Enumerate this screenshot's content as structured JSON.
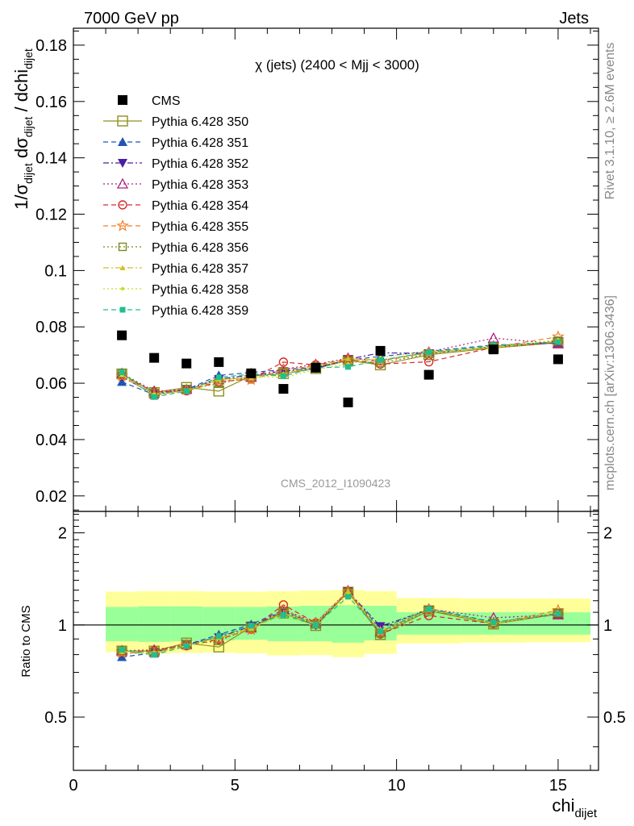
{
  "header": {
    "energy_label": "7000 GeV pp",
    "process_label": "Jets"
  },
  "side_labels": {
    "rivet": "Rivet 3.1.10, ≥ 2.6M events",
    "mcplots": "mcplots.cern.ch [arXiv:1306.3436]"
  },
  "chart_data": [
    {
      "type": "scatter",
      "panel": "main",
      "title": "χ (jets) (2400 < Mjj < 3000)",
      "watermark": "CMS_2012_I1090423",
      "ylabel": {
        "base": "1/σ",
        "sub1": "dijet",
        "mid": " dσ",
        "sub2": "dijet",
        "tail": " / dchi",
        "sub3": "dijet"
      },
      "xlim": [
        0,
        16.25
      ],
      "ylim": [
        0.0145,
        0.186
      ],
      "yticks": [
        0.02,
        0.04,
        0.06,
        0.08,
        0.1,
        0.12,
        0.14,
        0.16,
        0.18
      ],
      "ytick_labels": [
        "0.02",
        "0.04",
        "0.06",
        "0.08",
        "0.1",
        "0.12",
        "0.14",
        "0.16",
        "0.18"
      ],
      "legend_position": "top-left",
      "x": [
        1.5,
        2.5,
        3.5,
        4.5,
        5.5,
        6.5,
        7.5,
        8.5,
        9.5,
        11,
        13,
        15
      ],
      "series": [
        {
          "name": "CMS",
          "color": "#000000",
          "marker": "filled-square",
          "dash": "none",
          "values": [
            0.077,
            0.069,
            0.067,
            0.0675,
            0.0635,
            0.058,
            0.0655,
            0.0532,
            0.0715,
            0.063,
            0.072,
            0.0685
          ]
        },
        {
          "name": "Pythia 6.428 350",
          "color": "#8f8f1f",
          "marker": "open-square",
          "dash": "solid",
          "values": [
            0.0633,
            0.0567,
            0.0585,
            0.0572,
            0.0626,
            0.0634,
            0.0652,
            0.0681,
            0.0665,
            0.0701,
            0.0725,
            0.0744
          ]
        },
        {
          "name": "Pythia 6.428 351",
          "color": "#1f56b4",
          "marker": "filled-triangle-up",
          "dash": "dashed",
          "values": [
            0.0605,
            0.0559,
            0.0577,
            0.0628,
            0.0638,
            0.0648,
            0.0657,
            0.0682,
            0.0695,
            0.0713,
            0.0736,
            0.0742
          ]
        },
        {
          "name": "Pythia 6.428 352",
          "color": "#4b1fa0",
          "marker": "filled-triangle-down",
          "dash": "dashdot",
          "values": [
            0.0622,
            0.0562,
            0.058,
            0.0615,
            0.0629,
            0.0643,
            0.0653,
            0.0685,
            0.0708,
            0.0706,
            0.073,
            0.0748
          ]
        },
        {
          "name": "Pythia 6.428 353",
          "color": "#b0207e",
          "marker": "open-triangle-up",
          "dash": "dotted",
          "values": [
            0.0635,
            0.0572,
            0.0578,
            0.0612,
            0.0621,
            0.065,
            0.0667,
            0.0689,
            0.068,
            0.0711,
            0.076,
            0.074
          ]
        },
        {
          "name": "Pythia 6.428 354",
          "color": "#d42c2c",
          "marker": "open-circle",
          "dash": "dashed",
          "values": [
            0.0628,
            0.0569,
            0.0573,
            0.0605,
            0.0615,
            0.0675,
            0.0665,
            0.0685,
            0.0668,
            0.0676,
            0.0727,
            0.0745
          ]
        },
        {
          "name": "Pythia 6.428 355",
          "color": "#ef7f26",
          "marker": "open-star",
          "dash": "dashed",
          "values": [
            0.0625,
            0.0558,
            0.0576,
            0.0609,
            0.0612,
            0.0648,
            0.0662,
            0.0682,
            0.0678,
            0.0708,
            0.0728,
            0.0765
          ]
        },
        {
          "name": "Pythia 6.428 356",
          "color": "#7a8a1c",
          "marker": "open-square-small",
          "dash": "dotted",
          "values": [
            0.0636,
            0.0565,
            0.0578,
            0.0598,
            0.0623,
            0.0638,
            0.0659,
            0.0679,
            0.0672,
            0.0704,
            0.0731,
            0.0751
          ]
        },
        {
          "name": "Pythia 6.428 357",
          "color": "#d2c223",
          "marker": "small-triangle",
          "dash": "dashdot",
          "values": [
            0.0631,
            0.0556,
            0.0574,
            0.0614,
            0.0618,
            0.0633,
            0.066,
            0.0687,
            0.0683,
            0.0707,
            0.0729,
            0.0748
          ]
        },
        {
          "name": "Pythia 6.428 358",
          "color": "#c8df1f",
          "marker": "small-dot",
          "dash": "dotted",
          "values": [
            0.0627,
            0.0561,
            0.0571,
            0.0611,
            0.0625,
            0.062,
            0.0648,
            0.0669,
            0.0691,
            0.0714,
            0.0725,
            0.0755
          ]
        },
        {
          "name": "Pythia 6.428 359",
          "color": "#1fbf8f",
          "marker": "filled-square-small",
          "dash": "dashed",
          "values": [
            0.0639,
            0.0551,
            0.0572,
            0.0621,
            0.0632,
            0.0625,
            0.0655,
            0.0658,
            0.0682,
            0.071,
            0.0734,
            0.0746
          ]
        }
      ]
    },
    {
      "type": "line",
      "panel": "ratio",
      "ylabel": "Ratio to CMS",
      "xlabel": {
        "base": "chi",
        "sub": "dijet"
      },
      "xlim": [
        0,
        16.25
      ],
      "ylim": [
        0.335,
        2.35
      ],
      "ylog": true,
      "xticks": [
        0,
        5,
        10,
        15
      ],
      "xtick_labels": [
        "0",
        "5",
        "10",
        "15"
      ],
      "yticks": [
        0.5,
        1,
        2
      ],
      "ytick_labels": [
        "0.5",
        "1",
        "2"
      ],
      "reference_line": 1,
      "x_edges": [
        1,
        2,
        3,
        4,
        5,
        6,
        7,
        8,
        9,
        10,
        12,
        14,
        16
      ],
      "uncertainty_bands": {
        "outer": {
          "color": "#ffff99",
          "lower": [
            0.815,
            0.805,
            0.81,
            0.812,
            0.808,
            0.795,
            0.797,
            0.785,
            0.805,
            0.87,
            0.875,
            0.878
          ],
          "upper": [
            1.285,
            1.29,
            1.29,
            1.285,
            1.285,
            1.29,
            1.295,
            1.3,
            1.29,
            1.225,
            1.22,
            1.22
          ]
        },
        "inner": {
          "color": "#99ff99",
          "lower": [
            0.885,
            0.88,
            0.885,
            0.89,
            0.895,
            0.885,
            0.885,
            0.875,
            0.89,
            0.93,
            0.93,
            0.93
          ],
          "upper": [
            1.145,
            1.15,
            1.15,
            1.145,
            1.145,
            1.15,
            1.155,
            1.16,
            1.155,
            1.1,
            1.1,
            1.1
          ]
        }
      }
    }
  ]
}
